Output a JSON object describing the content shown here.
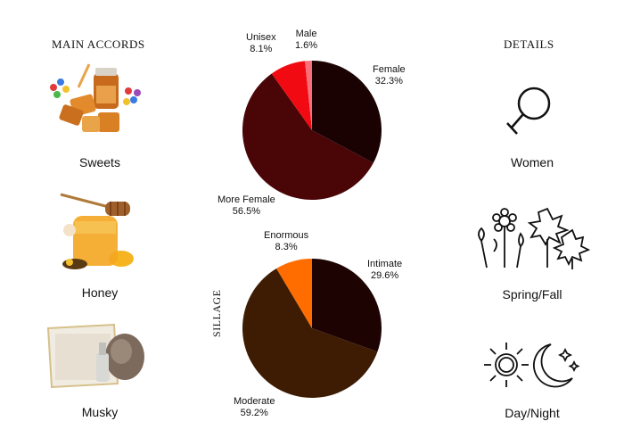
{
  "main_accords": {
    "heading": "MAIN ACCORDS",
    "items": [
      {
        "label": "Sweets",
        "icon": "candy-icon"
      },
      {
        "label": "Honey",
        "icon": "honey-jar-icon"
      },
      {
        "label": "Musky",
        "icon": "musk-icon"
      }
    ]
  },
  "details": {
    "heading": "DETAILS",
    "items": [
      {
        "label": "Women",
        "icon": "female-symbol-icon"
      },
      {
        "label": "Spring/Fall",
        "icon": "flowers-leaves-icon"
      },
      {
        "label": "Day/Night",
        "icon": "sun-moon-icon"
      }
    ]
  },
  "sillage_label": "SILLAGE",
  "chart_data": [
    {
      "type": "pie",
      "title": "",
      "slices": [
        {
          "label": "Female",
          "value": 32.3,
          "value_text": "32.3%",
          "color": "#1a0202"
        },
        {
          "label": "More Female",
          "value": 56.5,
          "value_text": "56.5%",
          "color": "#4a0507"
        },
        {
          "label": "Unisex",
          "value": 8.1,
          "value_text": "8.1%",
          "color": "#f20a12"
        },
        {
          "label": "Male",
          "value": 1.6,
          "value_text": "1.6%",
          "color": "#f7707a"
        }
      ]
    },
    {
      "type": "pie",
      "title": "SILLAGE",
      "slices": [
        {
          "label": "Intimate",
          "value": 29.6,
          "value_text": "29.6%",
          "color": "#1e0303"
        },
        {
          "label": "Moderate",
          "value": 59.2,
          "value_text": "59.2%",
          "color": "#3e1c04"
        },
        {
          "label": "Enormous",
          "value": 8.3,
          "value_text": "8.3%",
          "color": "#ff6c00"
        }
      ]
    }
  ]
}
